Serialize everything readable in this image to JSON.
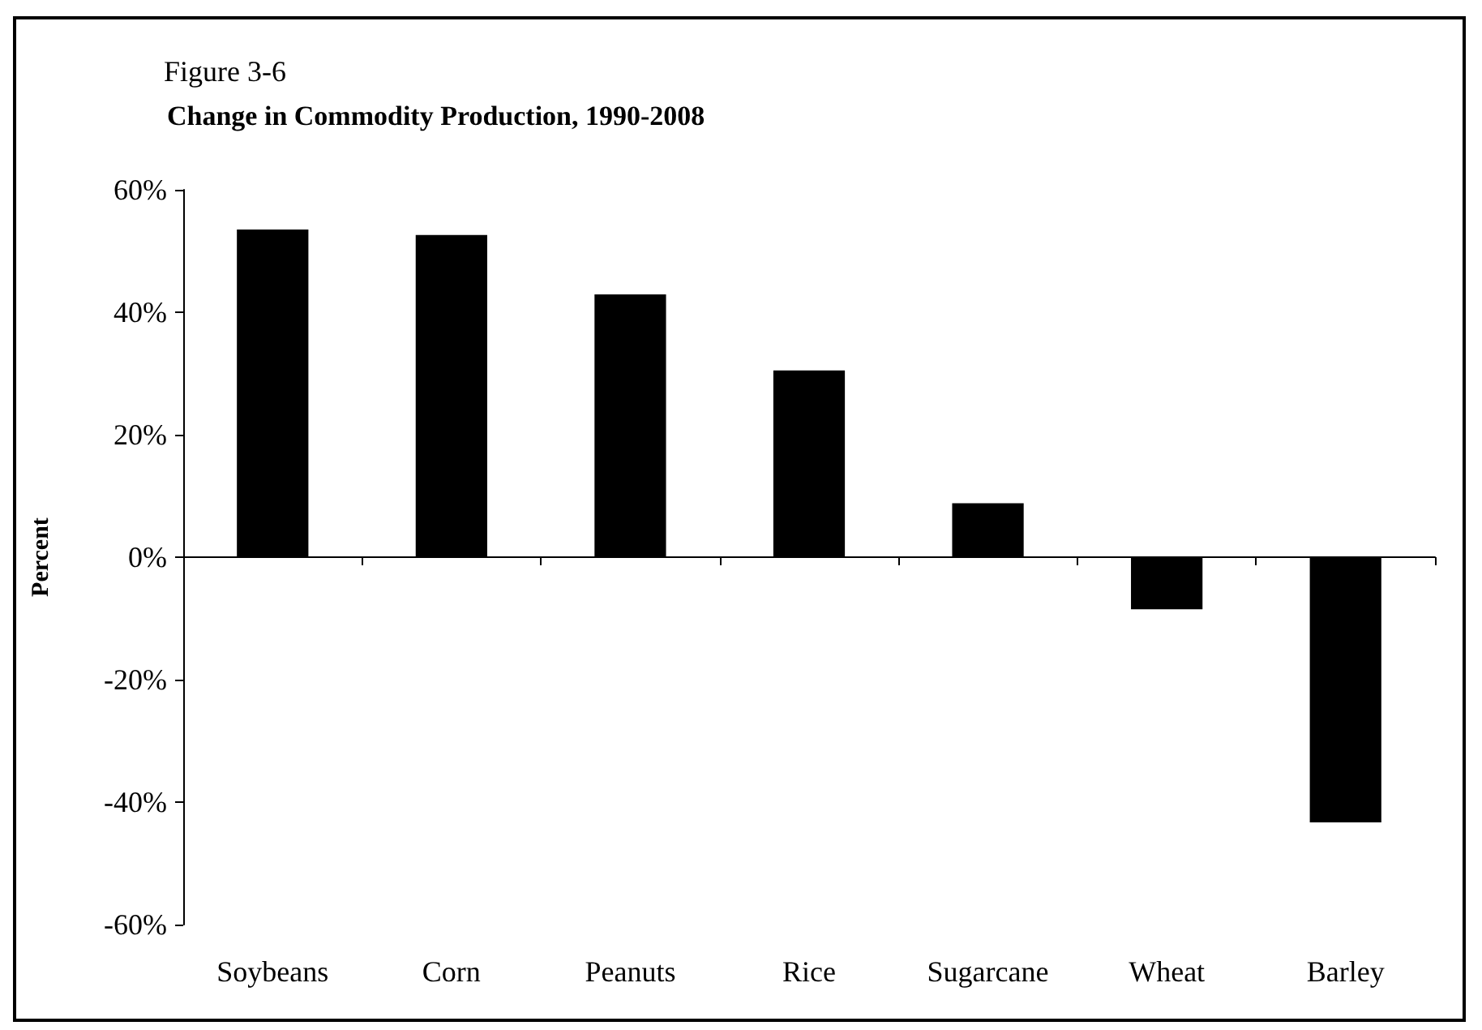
{
  "chart_data": {
    "type": "bar",
    "title": "Figure 3-6",
    "subtitle": "Change in Commodity Production, 1990-2008",
    "ylabel": "Percent",
    "categories": [
      "Soybeans",
      "Corn",
      "Peanuts",
      "Rice",
      "Sugarcane",
      "Wheat",
      "Barley"
    ],
    "values": [
      53.5,
      52.6,
      42.9,
      30.5,
      8.8,
      -8.5,
      -43.3
    ],
    "color": "#000000",
    "ylim": [
      -60,
      60
    ],
    "yticks": [
      {
        "value": -60,
        "label": "-60%"
      },
      {
        "value": -40,
        "label": "-40%"
      },
      {
        "value": -20,
        "label": "-20%"
      },
      {
        "value": 0,
        "label": "0%"
      },
      {
        "value": 20,
        "label": "20%"
      },
      {
        "value": 40,
        "label": "40%"
      },
      {
        "value": 60,
        "label": "60%"
      }
    ],
    "data_labels": false
  }
}
